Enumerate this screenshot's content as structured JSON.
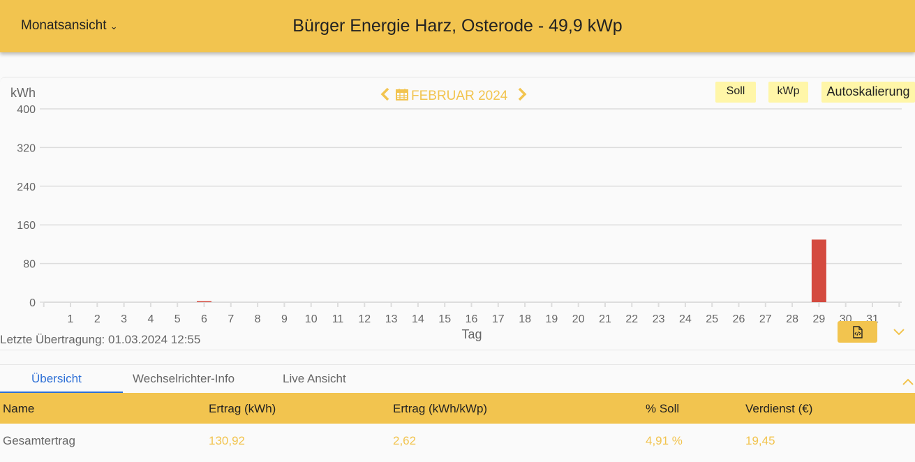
{
  "header": {
    "view_select": "Monatsansicht",
    "title": "Bürger Energie Harz, Osterode - 49,9 kWp"
  },
  "nav": {
    "month": "FEBRUAR 2024",
    "prev_icon": "chevron-left-icon",
    "next_icon": "chevron-right-icon",
    "calendar_icon": "calendar-icon"
  },
  "buttons": {
    "soll": "Soll",
    "kwp": "kWp",
    "auto": "Autoskalierung"
  },
  "last_transfer": "Letzte Übertragung: 01.03.2024 12:55",
  "colors": {
    "accent": "#f2c44f",
    "bar": "#d44a3f",
    "button_bg": "#fff6a8",
    "tab_active": "#2d6fd6"
  },
  "chart_data": {
    "type": "bar",
    "ylabel": "kWh",
    "xlabel": "Tag",
    "ylim": [
      0,
      400
    ],
    "yticks": [
      0,
      80,
      160,
      240,
      320,
      400
    ],
    "grid": true,
    "categories": [
      "1",
      "2",
      "3",
      "4",
      "5",
      "6",
      "7",
      "8",
      "9",
      "10",
      "11",
      "12",
      "13",
      "14",
      "15",
      "16",
      "17",
      "18",
      "19",
      "20",
      "21",
      "22",
      "23",
      "24",
      "25",
      "26",
      "27",
      "28",
      "29",
      "30",
      "31"
    ],
    "values": [
      0,
      0,
      0,
      0,
      0,
      1.4,
      0,
      0,
      0,
      0,
      0,
      0,
      0,
      0,
      0,
      0,
      0,
      0,
      0,
      0,
      0,
      0,
      0,
      0,
      0,
      0,
      0,
      0,
      129.5,
      0,
      0
    ]
  },
  "tabs": [
    {
      "label": "Übersicht"
    },
    {
      "label": "Wechselrichter-Info"
    },
    {
      "label": "Live Ansicht"
    }
  ],
  "table": {
    "headers": [
      "Name",
      "Ertrag (kWh)",
      "Ertrag (kWh/kWp)",
      "% Soll",
      "Verdienst (€)"
    ],
    "rows": [
      [
        "Gesamtertrag",
        "130,92",
        "2,62",
        "4,91 %",
        "19,45"
      ]
    ]
  }
}
